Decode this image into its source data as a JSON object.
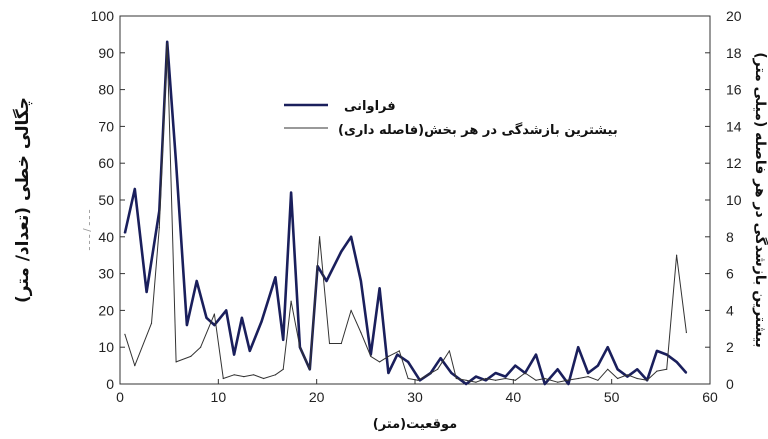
{
  "chart_data": {
    "type": "line",
    "title": "",
    "xlabel": "موقعیت(متر)",
    "ylabel_left": "چگالی خطی (تعداد/ متر)",
    "ylabel_right": "بیشترین بازشدگی در هر فاصله (میلی متر)",
    "xlim": [
      0,
      60
    ],
    "ylim_left": [
      0,
      100
    ],
    "ylim_right": [
      0,
      20
    ],
    "x_ticks": [
      "0",
      "10",
      "20",
      "30",
      "40",
      "50",
      "60"
    ],
    "y_left_ticks": [
      "0",
      "10",
      "20",
      "30",
      "40",
      "50",
      "60",
      "70",
      "80",
      "90",
      "100"
    ],
    "y_right_ticks": [
      "0",
      "2",
      "4",
      "6",
      "8",
      "10",
      "12",
      "14",
      "16",
      "18",
      "20"
    ],
    "legend_position": "upper-center",
    "grid": false,
    "series": [
      {
        "name": "فراوانی",
        "axis": "left",
        "color": "#1a1f5c",
        "x": [
          0.5,
          1.5,
          2.7,
          4.0,
          4.8,
          5.7,
          6.8,
          7.8,
          8.8,
          9.6,
          10.8,
          11.6,
          12.4,
          13.2,
          14.4,
          15.8,
          16.6,
          17.4,
          18.3,
          19.3,
          20.1,
          21.0,
          22.5,
          23.5,
          24.5,
          25.5,
          26.4,
          27.3,
          28.2,
          29.3,
          30.5,
          31.6,
          32.6,
          33.7,
          35.2,
          36.2,
          37.2,
          38.2,
          39.2,
          40.2,
          41.2,
          42.3,
          43.2,
          44.5,
          45.6,
          46.6,
          47.6,
          48.6,
          49.6,
          50.6,
          51.6,
          52.6,
          53.6,
          54.6,
          55.6,
          56.6,
          57.6
        ],
        "values": [
          41,
          53,
          25,
          47,
          93,
          60,
          16,
          28,
          18,
          16,
          20,
          8,
          18,
          9,
          17,
          29,
          12,
          52,
          10,
          4,
          32,
          28,
          36,
          40,
          28,
          8,
          26,
          3,
          8,
          6,
          1,
          3,
          7,
          3,
          0,
          2,
          1,
          3,
          2,
          5,
          3,
          8,
          0,
          4,
          0,
          10,
          3,
          5,
          10,
          4,
          2,
          4,
          1,
          9,
          8,
          6,
          3
        ]
      },
      {
        "name": "بیشترین بازشدگی در هر بخش(فاصله داری)",
        "axis": "right",
        "color": "#333333",
        "x": [
          0.5,
          1.5,
          3.2,
          4.0,
          4.8,
          5.7,
          7.2,
          8.2,
          9.6,
          10.5,
          11.6,
          12.6,
          13.6,
          14.6,
          15.8,
          16.6,
          17.4,
          18.3,
          19.3,
          20.3,
          21.3,
          22.5,
          23.5,
          24.5,
          25.5,
          26.4,
          27.3,
          28.4,
          29.3,
          30.3,
          31.3,
          32.3,
          33.5,
          34.2,
          35.2,
          36.2,
          37.2,
          38.2,
          39.2,
          40.2,
          41.2,
          42.3,
          43.2,
          44.5,
          45.5,
          46.6,
          47.6,
          48.6,
          49.6,
          50.6,
          51.6,
          52.6,
          53.6,
          54.6,
          55.6,
          56.6,
          57.6
        ],
        "values": [
          2.7,
          1,
          3.3,
          8.5,
          18.5,
          1.2,
          1.5,
          2,
          3.8,
          0.3,
          0.5,
          0.4,
          0.5,
          0.3,
          0.5,
          0.8,
          4.5,
          2,
          0.8,
          8,
          2.2,
          2.2,
          4,
          2.8,
          1.5,
          1.2,
          1.5,
          1.8,
          0.3,
          0.2,
          0.5,
          0.8,
          1.8,
          0.3,
          0.2,
          0.1,
          0.3,
          0.2,
          0.3,
          0.2,
          0.6,
          0.2,
          0.3,
          0.1,
          0.2,
          0.3,
          0.4,
          0.2,
          0.8,
          0.3,
          0.5,
          0.3,
          0.2,
          0.7,
          0.8,
          7,
          2.8
        ]
      }
    ],
    "faint_overlay_text": "ـ ـ ـ / ـ ـ ـ"
  }
}
